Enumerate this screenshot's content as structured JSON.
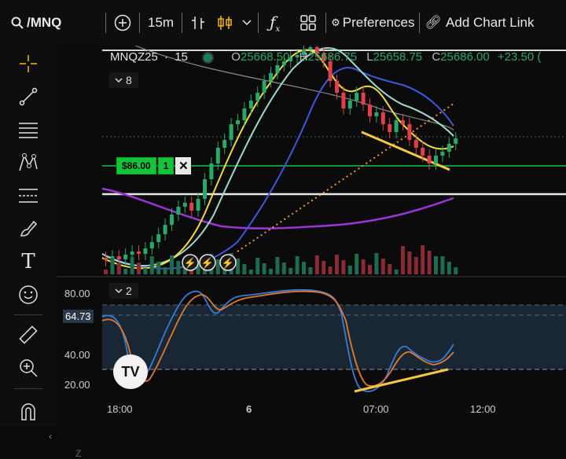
{
  "toolbar": {
    "symbol": "/MNQ",
    "interval": "15m",
    "preferences_label": "Preferences",
    "add_chart_link_label": "Add Chart Link"
  },
  "chart": {
    "ticker": "MNQZ25",
    "separator": "·",
    "interval": "15",
    "ohlc": {
      "o_key": "O",
      "o": "25668.50",
      "h_key": "H",
      "h": "25686.75",
      "l_key": "L",
      "l": "25658.75",
      "c_key": "C",
      "c": "25686.00",
      "change": "+23.50 ("
    },
    "indicator_count_main": "8",
    "position": {
      "pnl": "$86.00",
      "qty": "1"
    },
    "colors": {
      "up": "#2aa86a",
      "down": "#e0404a",
      "accent": "#f5b800",
      "position": "#16c23c"
    }
  },
  "oscillator": {
    "indicator_count": "2",
    "y_labels": [
      "80.00",
      "40.00",
      "20.00"
    ],
    "highlight_value": "64.73"
  },
  "x_axis": {
    "labels": [
      "18:00",
      "6",
      "07:00",
      "12:00"
    ]
  },
  "icons": [
    "search-icon",
    "plus-circle-icon",
    "bar-style-icon",
    "candle-style-icon",
    "chevron-down-icon",
    "fx-icon",
    "layout-icon",
    "gear-icon",
    "link-icon",
    "crosshair-icon",
    "line-tool-icon",
    "fib-tool-icon",
    "pattern-tool-icon",
    "projection-tool-icon",
    "brush-icon",
    "text-tool-icon",
    "emoji-icon",
    "ruler-icon",
    "zoom-in-icon",
    "magnet-icon"
  ]
}
